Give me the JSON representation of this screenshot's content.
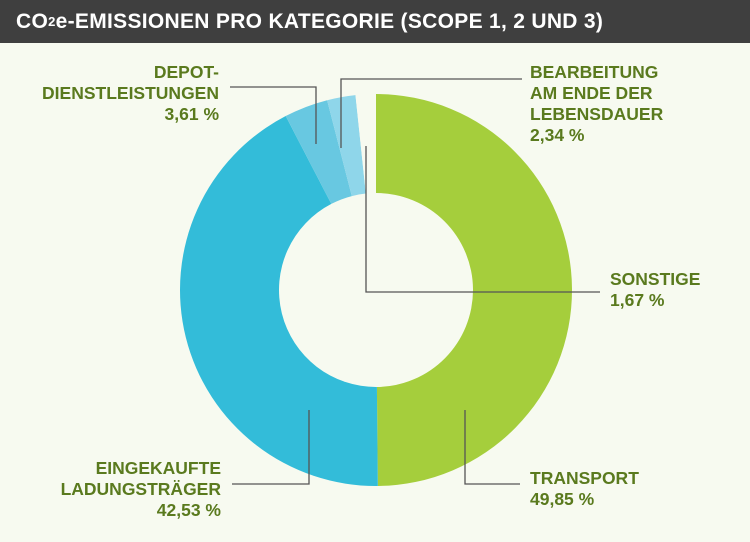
{
  "title": {
    "prefix": "CO",
    "subscript": "2",
    "suffix": "e-EMISSIONEN PRO KATEGORIE (SCOPE 1, 2 UND 3)"
  },
  "colors": {
    "transport": "#a5ce3c",
    "eingekaufte_ladungstraeger": "#33bcd9",
    "depot_dienstleistungen": "#68c8e1",
    "bearbeitung": "#8fd6ea",
    "sonstige": "#f7faf0",
    "label_text": "#5a7a1e",
    "leader_line": "#555555"
  },
  "chart_data": {
    "type": "pie",
    "title": "CO₂e-EMISSIONEN PRO KATEGORIE (SCOPE 1, 2 UND 3)",
    "unit": "%",
    "slices": [
      {
        "key": "transport",
        "label_lines": [
          "TRANSPORT"
        ],
        "value": 49.85,
        "value_label": "49,85 %"
      },
      {
        "key": "eingekaufte_ladungstraeger",
        "label_lines": [
          "EINGEKAUFTE",
          "LADUNGSTRÄGER"
        ],
        "value": 42.53,
        "value_label": "42,53 %"
      },
      {
        "key": "depot_dienstleistungen",
        "label_lines": [
          "DEPOT-",
          "DIENSTLEISTUNGEN"
        ],
        "value": 3.61,
        "value_label": "3,61 %"
      },
      {
        "key": "bearbeitung",
        "label_lines": [
          "BEARBEITUNG",
          "AM ENDE DER",
          "LEBENSDAUER"
        ],
        "value": 2.34,
        "value_label": "2,34 %"
      },
      {
        "key": "sonstige",
        "label_lines": [
          "SONSTIGE"
        ],
        "value": 1.67,
        "value_label": "1,67 %"
      }
    ]
  }
}
